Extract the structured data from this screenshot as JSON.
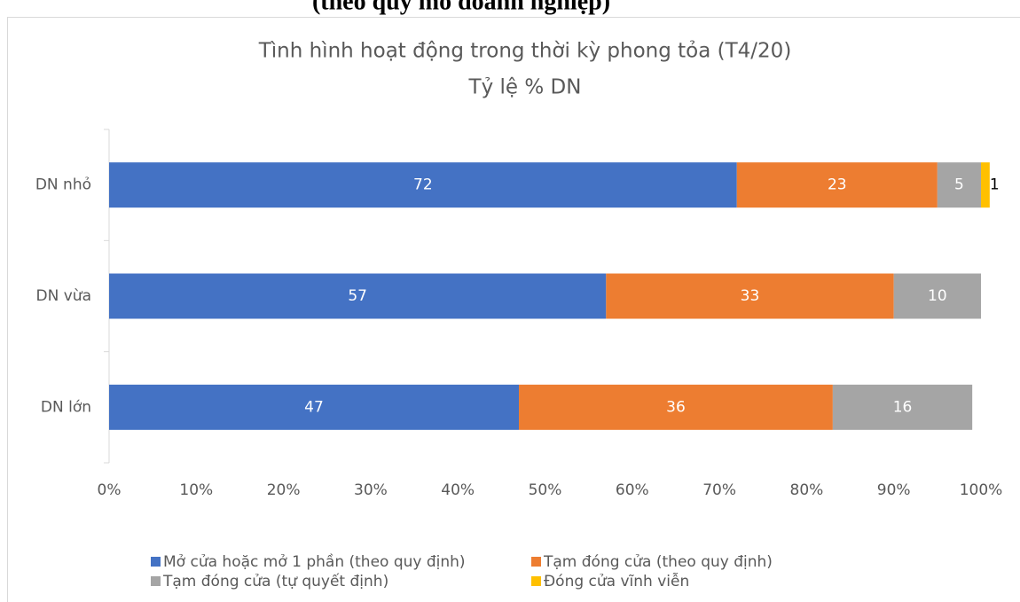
{
  "heading": "(theo quy mô doanh nghiệp)",
  "chart_data": {
    "type": "stacked_barh",
    "title": "Tình hình hoạt động trong thời kỳ phong tỏa (T4/20)",
    "subtitle": "Tỷ lệ % DN",
    "categories": [
      "DN nhỏ",
      "DN vừa",
      "DN lớn"
    ],
    "series": [
      {
        "name": "Mở cửa hoặc mở 1 phần (theo quy định)",
        "color": "#4472c4",
        "values": [
          72,
          57,
          47
        ]
      },
      {
        "name": "Tạm đóng cửa (theo quy định)",
        "color": "#ed7d31",
        "values": [
          23,
          33,
          36
        ]
      },
      {
        "name": "Tạm đóng cửa (tự quyết định)",
        "color": "#a5a5a5",
        "values": [
          5,
          10,
          16
        ]
      },
      {
        "name": "Đóng cửa vĩnh viễn",
        "color": "#ffc000",
        "values": [
          1,
          null,
          null
        ]
      }
    ],
    "xlim": [
      0,
      100
    ],
    "xticks": [
      {
        "value": 0,
        "label": "0%"
      },
      {
        "value": 10,
        "label": "10%"
      },
      {
        "value": 20,
        "label": "20%"
      },
      {
        "value": 30,
        "label": "30%"
      },
      {
        "value": 40,
        "label": "40%"
      },
      {
        "value": 50,
        "label": "50%"
      },
      {
        "value": 60,
        "label": "60%"
      },
      {
        "value": 70,
        "label": "70%"
      },
      {
        "value": 80,
        "label": "80%"
      },
      {
        "value": 90,
        "label": "90%"
      },
      {
        "value": 100,
        "label": "100%"
      }
    ],
    "legend": "bottom"
  }
}
